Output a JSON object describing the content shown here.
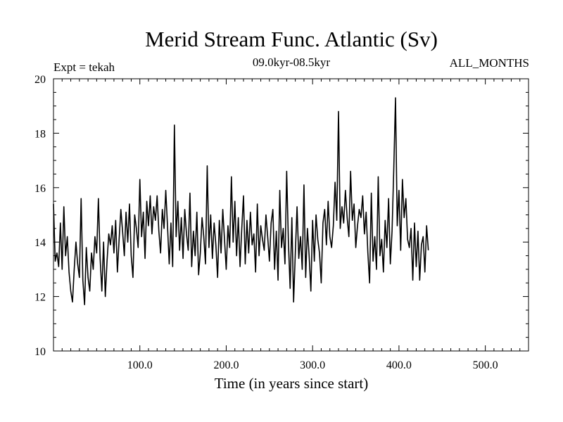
{
  "chart_data": {
    "type": "line",
    "title": "Merid Stream Func. Atlantic (Sv)",
    "subtitle": "09.0kyr-08.5kyr",
    "annotation_left": "Expt = tekah",
    "annotation_right": "ALL_MONTHS",
    "xlabel": "Time (in years since start)",
    "ylabel": "",
    "xlim": [
      0,
      550
    ],
    "ylim": [
      10,
      20
    ],
    "x_ticks_labeled": [
      {
        "value": 100,
        "label": "100.0"
      },
      {
        "value": 200,
        "label": "200.0"
      },
      {
        "value": 300,
        "label": "300.0"
      },
      {
        "value": 400,
        "label": "400.0"
      },
      {
        "value": 500,
        "label": "500.0"
      }
    ],
    "x_minor_step": 10,
    "y_ticks_labeled": [
      {
        "value": 10,
        "label": "10"
      },
      {
        "value": 12,
        "label": "12"
      },
      {
        "value": 14,
        "label": "14"
      },
      {
        "value": 16,
        "label": "16"
      },
      {
        "value": 18,
        "label": "18"
      },
      {
        "value": 20,
        "label": "20"
      }
    ],
    "y_minor_step": 0.5,
    "grid": false,
    "line_color": "#000000",
    "series": [
      {
        "name": "Merid Stream Func. Atlantic",
        "x_start": 0,
        "x_step": 2,
        "values": [
          15.4,
          13.3,
          13.6,
          13.1,
          14.7,
          13.0,
          15.3,
          13.5,
          14.2,
          12.9,
          12.2,
          11.8,
          13.0,
          14.0,
          13.2,
          12.7,
          15.6,
          12.6,
          11.7,
          13.8,
          12.7,
          12.2,
          13.6,
          13.0,
          14.2,
          13.6,
          15.6,
          13.4,
          12.2,
          14.0,
          12.0,
          13.3,
          14.3,
          13.9,
          14.6,
          13.6,
          14.8,
          12.9,
          14.1,
          15.2,
          14.4,
          13.5,
          15.1,
          14.0,
          15.4,
          13.5,
          12.7,
          15.0,
          14.5,
          13.8,
          16.3,
          14.2,
          15.1,
          13.4,
          15.5,
          14.6,
          15.7,
          14.3,
          15.3,
          14.8,
          15.7,
          14.4,
          13.6,
          15.2,
          14.5,
          15.9,
          14.6,
          13.2,
          14.7,
          13.1,
          18.3,
          14.2,
          15.5,
          13.7,
          14.9,
          13.4,
          15.2,
          14.3,
          13.7,
          15.8,
          13.1,
          14.4,
          13.5,
          15.1,
          12.8,
          13.6,
          14.9,
          14.2,
          13.2,
          16.8,
          13.8,
          15.0,
          13.4,
          14.7,
          13.9,
          12.7,
          14.8,
          13.6,
          15.2,
          14.1,
          13.0,
          14.6,
          13.8,
          16.4,
          14.0,
          15.5,
          13.5,
          14.9,
          13.1,
          14.5,
          15.7,
          13.2,
          14.8,
          13.6,
          15.1,
          13.9,
          14.3,
          12.9,
          15.4,
          13.5,
          14.6,
          14.1,
          13.7,
          15.0,
          14.2,
          13.3,
          14.7,
          15.2,
          13.0,
          14.4,
          12.6,
          15.9,
          13.8,
          14.5,
          13.2,
          16.6,
          14.0,
          12.3,
          14.9,
          11.8,
          13.6,
          15.3,
          13.4,
          14.2,
          13.0,
          16.1,
          12.7,
          14.5,
          13.5,
          12.2,
          14.8,
          13.3,
          15.0,
          14.1,
          13.6,
          12.5,
          14.7,
          15.2,
          13.9,
          15.5,
          14.2,
          13.8,
          14.6,
          16.2,
          14.8,
          18.8,
          14.5,
          15.3,
          14.7,
          15.9,
          14.9,
          14.2,
          16.6,
          14.8,
          15.4,
          13.8,
          14.6,
          15.2,
          14.9,
          15.7,
          14.3,
          15.1,
          13.6,
          12.5,
          15.8,
          13.3,
          14.2,
          13.0,
          16.4,
          13.5,
          14.1,
          12.9,
          14.8,
          13.8,
          15.6,
          13.2,
          14.4,
          16.7,
          19.3,
          14.6,
          15.9,
          13.7,
          16.3,
          14.9,
          15.6,
          14.1,
          13.8,
          14.5,
          12.6,
          14.7,
          13.1,
          14.4,
          12.6,
          13.9,
          14.2,
          12.9,
          14.6,
          13.7
        ]
      }
    ]
  }
}
